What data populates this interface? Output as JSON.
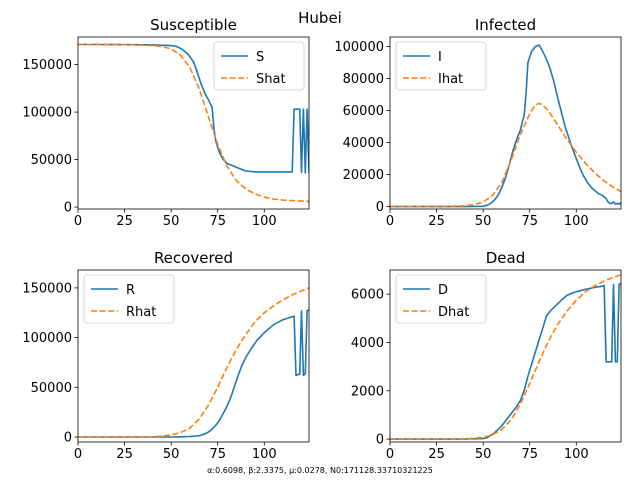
{
  "figure": {
    "suptitle": "Hubei",
    "footnote": "α:0.6098, β:2.3375, μ:0.0278, N0:171128.33710321225"
  },
  "colors": {
    "actual": "#1f77b4",
    "model": "#ff7f0e"
  },
  "chart_data": [
    {
      "type": "line",
      "title": "Susceptible",
      "xlim": [
        0,
        124
      ],
      "ylim": [
        -2000,
        179000
      ],
      "xticks": [
        0,
        25,
        50,
        75,
        100
      ],
      "xtick_labels": [
        "0",
        "25",
        "50",
        "75",
        "100"
      ],
      "yticks": [
        0,
        50000,
        100000,
        150000
      ],
      "ytick_labels": [
        "0",
        "50000",
        "100000",
        "150000"
      ],
      "legend_position": "top-right",
      "series": [
        {
          "name": "S",
          "style": "solid",
          "color": "#1f77b4",
          "x": [
            0,
            10,
            20,
            30,
            40,
            50,
            53,
            56,
            59,
            62,
            64,
            66,
            68,
            70,
            72,
            73,
            74,
            75,
            76,
            78,
            80,
            85,
            90,
            95,
            100,
            105,
            110,
            115,
            116,
            117,
            118,
            119,
            120,
            121,
            122,
            123,
            124
          ],
          "y": [
            171128,
            171100,
            171000,
            170900,
            170700,
            170000,
            169000,
            166000,
            161000,
            153000,
            142000,
            130000,
            120000,
            113000,
            105000,
            82000,
            69000,
            63000,
            57000,
            50000,
            46000,
            42000,
            38000,
            37000,
            37000,
            37000,
            37000,
            37000,
            103000,
            103000,
            103000,
            103000,
            36500,
            103000,
            36000,
            103000,
            36000
          ]
        },
        {
          "name": "Shat",
          "style": "dashed",
          "color": "#ff7f0e",
          "x": [
            0,
            10,
            20,
            30,
            40,
            45,
            50,
            55,
            60,
            65,
            70,
            75,
            80,
            85,
            90,
            95,
            100,
            105,
            110,
            115,
            120,
            124
          ],
          "y": [
            171128,
            171100,
            171000,
            170800,
            170000,
            169000,
            166500,
            160000,
            147000,
            125000,
            95000,
            66000,
            43000,
            28000,
            19000,
            14000,
            10500,
            8500,
            7400,
            6800,
            6300,
            6000
          ]
        }
      ]
    },
    {
      "type": "line",
      "title": "Infected",
      "xlim": [
        0,
        124
      ],
      "ylim": [
        -1500,
        106000
      ],
      "xticks": [
        0,
        25,
        50,
        75,
        100
      ],
      "xtick_labels": [
        "0",
        "25",
        "50",
        "75",
        "100"
      ],
      "yticks": [
        0,
        20000,
        40000,
        60000,
        80000,
        100000
      ],
      "ytick_labels": [
        "0",
        "20000",
        "40000",
        "60000",
        "80000",
        "100000"
      ],
      "legend_position": "top-left",
      "series": [
        {
          "name": "I",
          "style": "solid",
          "color": "#1f77b4",
          "x": [
            0,
            10,
            20,
            30,
            40,
            50,
            52,
            54,
            56,
            58,
            60,
            62,
            64,
            66,
            68,
            70,
            72,
            73,
            74,
            76,
            78,
            80,
            82,
            84,
            86,
            88,
            90,
            92,
            94,
            96,
            98,
            100,
            102,
            104,
            106,
            108,
            110,
            112,
            114,
            116,
            117,
            118,
            119,
            120,
            121,
            122,
            123,
            124
          ],
          "y": [
            0,
            0,
            0,
            0,
            0,
            200,
            800,
            2000,
            4000,
            7000,
            12000,
            18000,
            26000,
            35000,
            42000,
            48000,
            57000,
            70000,
            90000,
            97000,
            100000,
            101000,
            97000,
            92000,
            86000,
            78000,
            68000,
            59000,
            50000,
            43000,
            36000,
            30000,
            24000,
            19000,
            15000,
            12000,
            10000,
            8000,
            7000,
            5000,
            3000,
            2000,
            2000,
            3000,
            1500,
            2000,
            1500,
            2500
          ]
        },
        {
          "name": "Ihat",
          "style": "dashed",
          "color": "#ff7f0e",
          "x": [
            0,
            10,
            20,
            30,
            40,
            45,
            50,
            55,
            60,
            65,
            70,
            75,
            78,
            80,
            82,
            85,
            90,
            95,
            100,
            105,
            110,
            115,
            120,
            124
          ],
          "y": [
            0,
            0,
            0,
            100,
            500,
            1200,
            2800,
            7000,
            15000,
            29000,
            45000,
            58000,
            63500,
            64500,
            63500,
            60000,
            51000,
            42000,
            34000,
            27000,
            21000,
            16000,
            12000,
            9500
          ]
        }
      ]
    },
    {
      "type": "line",
      "title": "Recovered",
      "xlim": [
        0,
        124
      ],
      "ylim": [
        -5000,
        168000
      ],
      "xticks": [
        0,
        25,
        50,
        75,
        100
      ],
      "xtick_labels": [
        "0",
        "25",
        "50",
        "75",
        "100"
      ],
      "yticks": [
        0,
        50000,
        100000,
        150000
      ],
      "ytick_labels": [
        "0",
        "50000",
        "100000",
        "150000"
      ],
      "legend_position": "top-left",
      "series": [
        {
          "name": "R",
          "style": "solid",
          "color": "#1f77b4",
          "x": [
            0,
            10,
            20,
            30,
            40,
            50,
            55,
            60,
            65,
            68,
            70,
            72,
            74,
            76,
            78,
            80,
            82,
            84,
            86,
            88,
            90,
            93,
            96,
            100,
            105,
            110,
            115,
            116,
            117,
            118,
            119,
            120,
            121,
            122,
            123,
            124
          ],
          "y": [
            0,
            0,
            0,
            0,
            0,
            0,
            200,
            500,
            1200,
            3000,
            5000,
            8000,
            12000,
            17000,
            24000,
            31000,
            40000,
            51000,
            62000,
            72000,
            80000,
            89000,
            97000,
            105000,
            113000,
            118000,
            121000,
            121500,
            62000,
            63000,
            63000,
            127000,
            62000,
            64000,
            127000,
            128000
          ]
        },
        {
          "name": "Rhat",
          "style": "dashed",
          "color": "#ff7f0e",
          "x": [
            0,
            10,
            20,
            30,
            40,
            45,
            50,
            55,
            60,
            65,
            70,
            75,
            80,
            85,
            90,
            95,
            100,
            105,
            110,
            115,
            120,
            124
          ],
          "y": [
            0,
            0,
            0,
            0,
            300,
            800,
            2000,
            4500,
            9000,
            18000,
            32000,
            50000,
            70000,
            88000,
            103000,
            116000,
            125000,
            132000,
            138000,
            143000,
            147000,
            150000
          ]
        }
      ]
    },
    {
      "type": "line",
      "title": "Dead",
      "xlim": [
        0,
        124
      ],
      "ylim": [
        -120,
        7000
      ],
      "xticks": [
        0,
        25,
        50,
        75,
        100
      ],
      "xtick_labels": [
        "0",
        "25",
        "50",
        "75",
        "100"
      ],
      "yticks": [
        0,
        2000,
        4000,
        6000
      ],
      "ytick_labels": [
        "0",
        "2000",
        "4000",
        "6000"
      ],
      "legend_position": "top-left",
      "series": [
        {
          "name": "D",
          "style": "solid",
          "color": "#1f77b4",
          "x": [
            0,
            10,
            20,
            30,
            40,
            50,
            52,
            54,
            56,
            58,
            60,
            62,
            64,
            66,
            68,
            70,
            72,
            74,
            76,
            78,
            80,
            82,
            84,
            86,
            88,
            90,
            92,
            95,
            98,
            100,
            105,
            110,
            113,
            115,
            116,
            117,
            118,
            119,
            120,
            121,
            122,
            123,
            124
          ],
          "y": [
            0,
            0,
            0,
            0,
            0,
            20,
            60,
            150,
            250,
            400,
            550,
            750,
            950,
            1150,
            1350,
            1600,
            2000,
            2600,
            3100,
            3600,
            4100,
            4600,
            5100,
            5300,
            5450,
            5600,
            5750,
            5950,
            6050,
            6100,
            6200,
            6280,
            6320,
            6350,
            3200,
            3200,
            3200,
            3200,
            6400,
            3200,
            3200,
            6400,
            6450
          ]
        },
        {
          "name": "Dhat",
          "style": "dashed",
          "color": "#ff7f0e",
          "x": [
            0,
            10,
            20,
            30,
            40,
            45,
            50,
            55,
            60,
            65,
            70,
            75,
            80,
            85,
            90,
            95,
            100,
            105,
            110,
            115,
            120,
            124
          ],
          "y": [
            0,
            0,
            0,
            0,
            10,
            30,
            80,
            180,
            400,
            800,
            1450,
            2300,
            3200,
            4050,
            4750,
            5300,
            5750,
            6100,
            6350,
            6550,
            6700,
            6800
          ]
        }
      ]
    }
  ]
}
